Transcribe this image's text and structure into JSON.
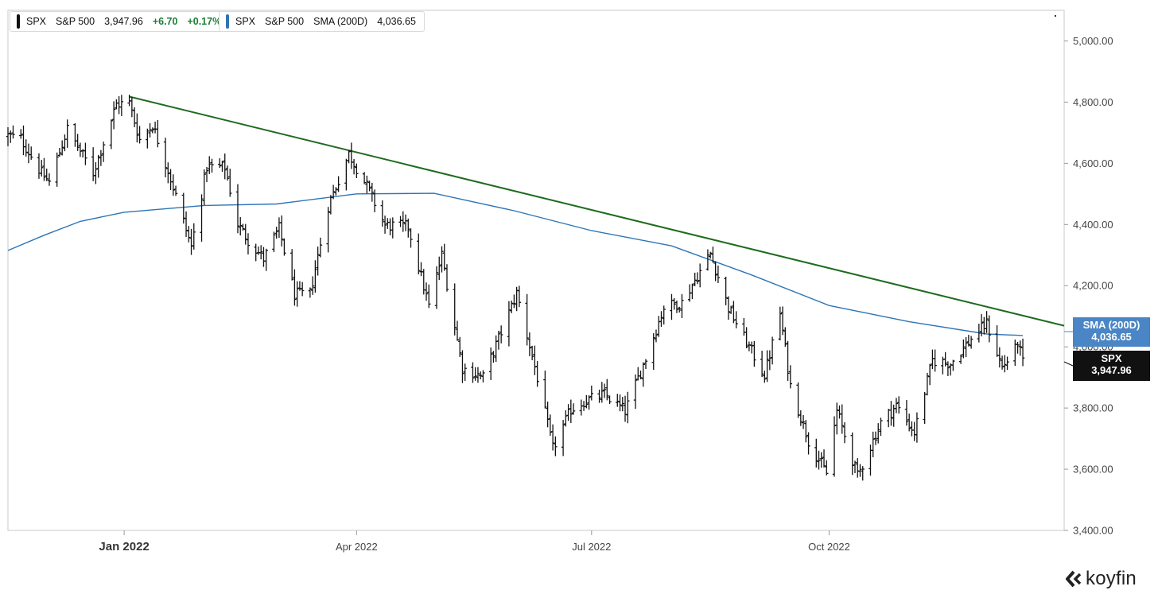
{
  "legend": {
    "spx": {
      "ticker": "SPX",
      "name": "S&P 500",
      "value": "3,947.96",
      "change": "+6.70",
      "change_pct": "+0.17%",
      "color": "#111111"
    },
    "sma": {
      "ticker": "SPX",
      "name": "S&P 500",
      "study": "SMA (200D)",
      "value": "4,036.65",
      "color": "#2e75b6"
    }
  },
  "tags": {
    "sma": {
      "label": "SMA (200D)",
      "value": "4,036.65",
      "color": "#4a86c5"
    },
    "spx": {
      "label": "SPX",
      "value": "3,947.96",
      "color": "#111111"
    }
  },
  "brand": {
    "name": "koyfin",
    "logo_icon": "koyfin-chevron-logo-icon"
  },
  "chart_data": {
    "type": "ohlc",
    "x_axis": {
      "type": "date",
      "range": [
        "2021-11-17",
        "2022-12-31"
      ],
      "ticks": [
        {
          "date": "2022-01-01",
          "label": "Jan 2022",
          "bold": true
        },
        {
          "date": "2022-04-01",
          "label": "Apr 2022"
        },
        {
          "date": "2022-07-01",
          "label": "Jul 2022"
        },
        {
          "date": "2022-10-01",
          "label": "Oct 2022"
        }
      ]
    },
    "y_axis": {
      "position": "right",
      "range": [
        3400,
        5100
      ],
      "ticks": [
        3400,
        3600,
        3800,
        4000,
        4200,
        4400,
        4600,
        4800,
        5000
      ],
      "tick_labels": [
        "3,400.00",
        "3,600.00",
        "3,800.00",
        "4,000.00",
        "4,200.00",
        "4,400.00",
        "4,600.00",
        "4,800.00",
        "5,000.00"
      ]
    },
    "colors": {
      "price": "#111111",
      "sma": "#2e75b6",
      "trendline": "#1f6b1f"
    },
    "price_series": {
      "name": "SPX",
      "path": [
        [
          "2021-11-17",
          4690
        ],
        [
          "2021-11-22",
          4680
        ],
        [
          "2021-11-30",
          4567
        ],
        [
          "2021-12-03",
          4538
        ],
        [
          "2021-12-10",
          4712
        ],
        [
          "2021-12-20",
          4568
        ],
        [
          "2021-12-29",
          4793
        ],
        [
          "2022-01-03",
          4797
        ],
        [
          "2022-01-07",
          4677
        ],
        [
          "2022-01-12",
          4726
        ],
        [
          "2022-01-18",
          4577
        ],
        [
          "2022-01-24",
          4410
        ],
        [
          "2022-01-27",
          4327
        ],
        [
          "2022-02-02",
          4589
        ],
        [
          "2022-02-09",
          4587
        ],
        [
          "2022-02-14",
          4402
        ],
        [
          "2022-02-18",
          4349
        ],
        [
          "2022-02-24",
          4288
        ],
        [
          "2022-03-02",
          4387
        ],
        [
          "2022-03-08",
          4171
        ],
        [
          "2022-03-14",
          4173
        ],
        [
          "2022-03-21",
          4461
        ],
        [
          "2022-03-29",
          4631
        ],
        [
          "2022-04-05",
          4525
        ],
        [
          "2022-04-12",
          4397
        ],
        [
          "2022-04-21",
          4393
        ],
        [
          "2022-04-29",
          4132
        ],
        [
          "2022-05-04",
          4300
        ],
        [
          "2022-05-12",
          3930
        ],
        [
          "2022-05-20",
          3901
        ],
        [
          "2022-05-31",
          4132
        ],
        [
          "2022-06-02",
          4176
        ],
        [
          "2022-06-10",
          3900
        ],
        [
          "2022-06-16",
          3667
        ],
        [
          "2022-06-23",
          3795
        ],
        [
          "2022-06-28",
          3821
        ],
        [
          "2022-07-06",
          3845
        ],
        [
          "2022-07-14",
          3790
        ],
        [
          "2022-07-22",
          3962
        ],
        [
          "2022-07-29",
          4130
        ],
        [
          "2022-08-05",
          4145
        ],
        [
          "2022-08-16",
          4305
        ],
        [
          "2022-08-23",
          4128
        ],
        [
          "2022-08-29",
          4030
        ],
        [
          "2022-09-06",
          3908
        ],
        [
          "2022-09-12",
          4110
        ],
        [
          "2022-09-16",
          3873
        ],
        [
          "2022-09-23",
          3693
        ],
        [
          "2022-09-30",
          3586
        ],
        [
          "2022-10-04",
          3791
        ],
        [
          "2022-10-12",
          3577
        ],
        [
          "2022-10-21",
          3752
        ],
        [
          "2022-10-27",
          3808
        ],
        [
          "2022-11-03",
          3720
        ],
        [
          "2022-11-10",
          3956
        ],
        [
          "2022-11-17",
          3946
        ],
        [
          "2022-11-25",
          4026
        ],
        [
          "2022-12-01",
          4076
        ],
        [
          "2022-12-07",
          3933
        ],
        [
          "2022-12-12",
          3990
        ],
        [
          "2022-12-13",
          4019
        ],
        [
          "2022-12-15",
          3947
        ]
      ]
    },
    "sma_series": {
      "name": "SMA (200D)",
      "points": [
        [
          "2021-11-17",
          4315
        ],
        [
          "2021-12-01",
          4365
        ],
        [
          "2021-12-15",
          4410
        ],
        [
          "2022-01-01",
          4440
        ],
        [
          "2022-02-01",
          4462
        ],
        [
          "2022-03-01",
          4467
        ],
        [
          "2022-04-01",
          4500
        ],
        [
          "2022-05-01",
          4502
        ],
        [
          "2022-06-01",
          4445
        ],
        [
          "2022-07-01",
          4380
        ],
        [
          "2022-08-01",
          4330
        ],
        [
          "2022-09-01",
          4235
        ],
        [
          "2022-10-01",
          4135
        ],
        [
          "2022-11-01",
          4082
        ],
        [
          "2022-12-01",
          4042
        ],
        [
          "2022-12-15",
          4037
        ]
      ]
    },
    "trendline": {
      "points": [
        [
          "2022-01-03",
          4818
        ],
        [
          "2022-12-31",
          4069
        ]
      ]
    }
  }
}
